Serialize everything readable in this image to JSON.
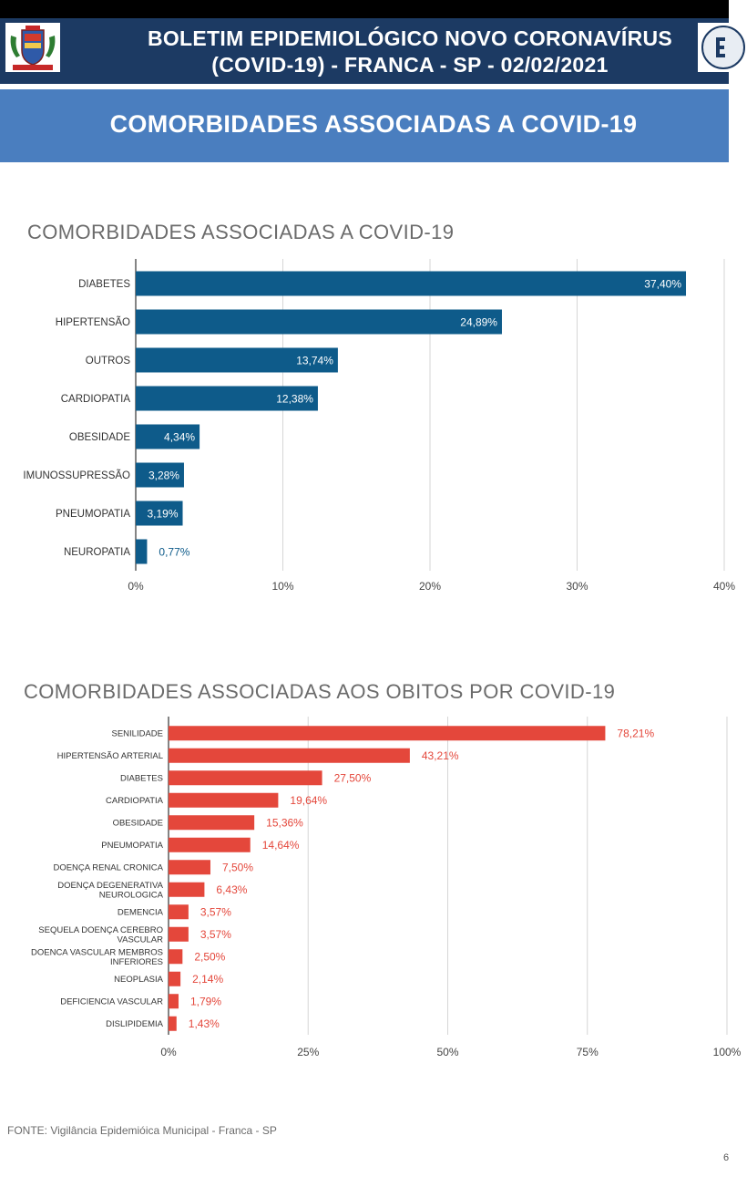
{
  "header": {
    "title_line1": "BOLETIM EPIDEMIOLÓGICO NOVO CORONAVÍRUS",
    "title_line2": "(COVID-19) - FRANCA - SP - 02/02/2021"
  },
  "banner": {
    "title": "COMORBIDADES ASSOCIADAS A COVID-19"
  },
  "colors": {
    "header_bg": "#1c3a63",
    "banner_bg": "#4a7ebf",
    "chart1_bar": "#0e5b8a",
    "chart2_bar": "#e4473b"
  },
  "chart_data": [
    {
      "type": "bar",
      "orientation": "horizontal",
      "title": "COMORBIDADES ASSOCIADAS A COVID-19",
      "categories": [
        "DIABETES",
        "HIPERTENSÃO",
        "OUTROS",
        "CARDIOPATIA",
        "OBESIDADE",
        "IMUNOSSUPRESSÃO",
        "PNEUMOPATIA",
        "NEUROPATIA"
      ],
      "values": [
        37.4,
        24.89,
        13.74,
        12.38,
        4.34,
        3.28,
        3.19,
        0.77
      ],
      "value_labels": [
        "37,40%",
        "24,89%",
        "13,74%",
        "12,38%",
        "4,34%",
        "3,28%",
        "3,19%",
        "0,77%"
      ],
      "xlim": [
        0,
        40
      ],
      "x_ticks": [
        0,
        10,
        20,
        30,
        40
      ],
      "x_tick_labels": [
        "0%",
        "10%",
        "20%",
        "30%",
        "40%"
      ],
      "grid": true
    },
    {
      "type": "bar",
      "orientation": "horizontal",
      "title": "COMORBIDADES ASSOCIADAS AOS OBITOS POR COVID-19",
      "categories": [
        "SENILIDADE",
        "HIPERTENSÃO ARTERIAL",
        "DIABETES",
        "CARDIOPATIA",
        "OBESIDADE",
        "PNEUMOPATIA",
        "DOENÇA RENAL CRONICA",
        "DOENÇA DEGENERATIVA NEUROLOGICA",
        "DEMENCIA",
        "SEQUELA DOENÇA CEREBRO VASCULAR",
        "DOENCA VASCULAR MEMBROS INFERIORES",
        "NEOPLASIA",
        "DEFICIENCIA VASCULAR",
        "DISLIPIDEMIA"
      ],
      "category_lines": [
        [
          "SENILIDADE"
        ],
        [
          "HIPERTENSÃO ARTERIAL"
        ],
        [
          "DIABETES"
        ],
        [
          "CARDIOPATIA"
        ],
        [
          "OBESIDADE"
        ],
        [
          "PNEUMOPATIA"
        ],
        [
          "DOENÇA RENAL CRONICA"
        ],
        [
          "DOENÇA DEGENERATIVA",
          "NEUROLOGICA"
        ],
        [
          "DEMENCIA"
        ],
        [
          "SEQUELA DOENÇA CEREBRO",
          "VASCULAR"
        ],
        [
          "DOENCA VASCULAR MEMBROS",
          "INFERIORES"
        ],
        [
          "NEOPLASIA"
        ],
        [
          "DEFICIENCIA VASCULAR"
        ],
        [
          "DISLIPIDEMIA"
        ]
      ],
      "values": [
        78.21,
        43.21,
        27.5,
        19.64,
        15.36,
        14.64,
        7.5,
        6.43,
        3.57,
        3.57,
        2.5,
        2.14,
        1.79,
        1.43
      ],
      "value_labels": [
        "78,21%",
        "43,21%",
        "27,50%",
        "19,64%",
        "15,36%",
        "14,64%",
        "7,50%",
        "6,43%",
        "3,57%",
        "3,57%",
        "2,50%",
        "2,14%",
        "1,79%",
        "1,43%"
      ],
      "xlim": [
        0,
        100
      ],
      "x_ticks": [
        0,
        25,
        50,
        75,
        100
      ],
      "x_tick_labels": [
        "0%",
        "25%",
        "50%",
        "75%",
        "100%"
      ],
      "grid": true
    }
  ],
  "footer": {
    "source": "FONTE: Vigilância Epidemióica Municipal - Franca - SP",
    "page_number": "6"
  }
}
